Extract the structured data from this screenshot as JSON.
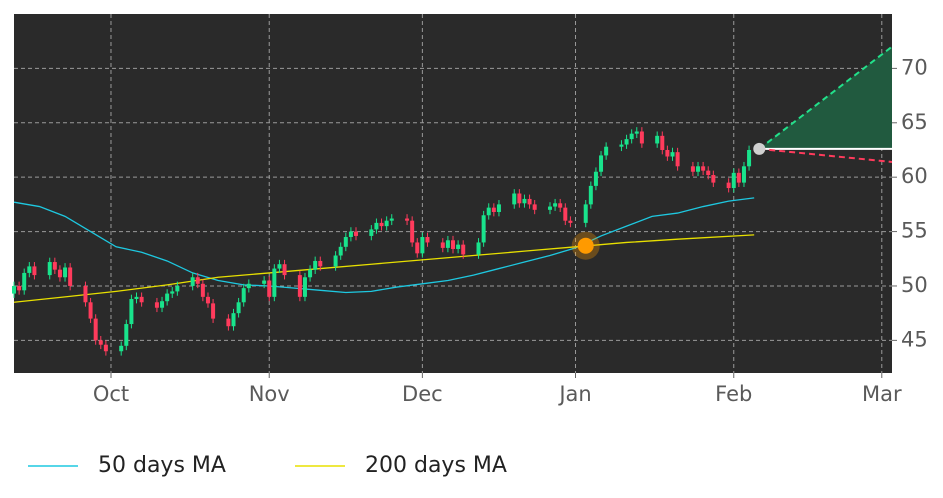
{
  "chart_data": {
    "type": "candlestick",
    "xlim": [
      0,
      172
    ],
    "ylim": [
      42,
      75
    ],
    "xticks": [
      {
        "value": 19,
        "label": "Oct"
      },
      {
        "value": 50,
        "label": "Nov"
      },
      {
        "value": 80,
        "label": "Dec"
      },
      {
        "value": 110,
        "label": "Jan"
      },
      {
        "value": 141,
        "label": "Feb"
      },
      {
        "value": 170,
        "label": "Mar"
      }
    ],
    "yticks": [
      45,
      50,
      55,
      60,
      65,
      70
    ],
    "grid": true,
    "background": "#2a2a2a",
    "up_color": "#19e38c",
    "down_color": "#ff3b5c",
    "x": [
      0,
      1,
      2,
      3,
      4,
      7,
      8,
      9,
      10,
      11,
      14,
      15,
      16,
      17,
      18,
      21,
      22,
      23,
      24,
      25,
      28,
      29,
      30,
      31,
      32,
      35,
      36,
      37,
      38,
      39,
      42,
      43,
      44,
      45,
      46,
      49,
      50,
      51,
      52,
      53,
      56,
      57,
      58,
      59,
      60,
      63,
      64,
      65,
      66,
      67,
      70,
      71,
      72,
      73,
      74,
      77,
      78,
      79,
      80,
      81,
      84,
      85,
      86,
      87,
      88,
      91,
      92,
      93,
      94,
      95,
      98,
      99,
      100,
      101,
      102,
      105,
      106,
      107,
      108,
      109,
      112,
      113,
      114,
      115,
      116,
      119,
      120,
      121,
      122,
      123,
      126,
      127,
      128,
      129,
      130,
      133,
      134,
      135,
      136,
      137,
      140,
      141,
      142,
      143,
      144
    ],
    "open": [
      49.3,
      50.0,
      49.6,
      51.2,
      51.8,
      51.0,
      52.2,
      51.5,
      50.8,
      51.7,
      50.0,
      48.5,
      47.0,
      45.0,
      44.6,
      44.0,
      44.5,
      46.5,
      48.8,
      49.0,
      48.5,
      48.0,
      48.6,
      49.3,
      49.5,
      50.0,
      50.8,
      50.2,
      49.0,
      48.4,
      47.0,
      46.3,
      47.5,
      48.5,
      49.8,
      50.2,
      50.5,
      49.0,
      51.6,
      52.0,
      51.0,
      49.0,
      50.8,
      51.5,
      52.3,
      51.8,
      52.8,
      53.6,
      54.5,
      55.0,
      54.6,
      55.2,
      55.8,
      55.5,
      56.0,
      56.2,
      56.0,
      54.0,
      53.0,
      54.5,
      54.0,
      53.5,
      54.2,
      53.4,
      53.8,
      52.9,
      54.0,
      56.5,
      57.2,
      56.8,
      57.5,
      58.5,
      57.6,
      58.0,
      57.5,
      57.0,
      57.3,
      57.6,
      57.2,
      56.0,
      55.8,
      57.5,
      59.2,
      60.5,
      62.0,
      62.8,
      63.0,
      63.5,
      64.0,
      64.2,
      63.1,
      63.8,
      62.5,
      61.9,
      62.3,
      61.0,
      60.5,
      61.0,
      60.6,
      60.2,
      59.5,
      59.0,
      60.4,
      59.5,
      61.0
    ],
    "high": [
      50.4,
      50.4,
      51.6,
      52.2,
      52.2,
      52.6,
      52.6,
      51.9,
      52.1,
      52.1,
      50.4,
      48.9,
      47.4,
      45.4,
      45.0,
      44.9,
      46.9,
      49.2,
      49.4,
      49.4,
      48.9,
      49.0,
      49.7,
      49.9,
      50.4,
      51.2,
      51.2,
      50.6,
      49.4,
      48.8,
      47.4,
      47.9,
      48.9,
      50.2,
      50.6,
      50.9,
      50.9,
      52.0,
      52.4,
      52.4,
      51.4,
      51.2,
      51.9,
      52.7,
      52.7,
      53.2,
      54.0,
      54.9,
      55.4,
      55.4,
      55.6,
      56.2,
      56.2,
      56.4,
      56.6,
      56.6,
      56.4,
      54.4,
      54.9,
      54.9,
      54.4,
      54.6,
      54.6,
      54.2,
      54.2,
      54.4,
      56.9,
      57.6,
      57.6,
      57.9,
      58.9,
      58.9,
      58.4,
      58.4,
      57.9,
      57.7,
      58.0,
      58.0,
      57.6,
      56.4,
      57.9,
      59.6,
      60.9,
      62.4,
      63.2,
      63.4,
      63.9,
      64.4,
      64.6,
      64.6,
      64.2,
      64.2,
      62.9,
      62.7,
      62.7,
      61.4,
      61.4,
      61.4,
      61.0,
      60.6,
      59.9,
      60.8,
      60.8,
      61.4,
      62.9
    ],
    "low": [
      48.9,
      49.2,
      49.2,
      50.8,
      50.6,
      50.6,
      51.1,
      50.4,
      50.4,
      49.6,
      48.1,
      46.6,
      44.6,
      44.2,
      43.6,
      43.6,
      44.1,
      46.1,
      48.4,
      48.1,
      47.6,
      47.6,
      48.2,
      48.9,
      49.1,
      49.6,
      49.8,
      48.6,
      48.0,
      46.6,
      45.9,
      45.9,
      47.1,
      48.1,
      49.4,
      49.8,
      48.6,
      48.6,
      51.2,
      50.6,
      48.6,
      48.6,
      50.4,
      51.1,
      51.4,
      51.4,
      52.4,
      53.2,
      54.1,
      54.2,
      54.2,
      54.8,
      55.1,
      55.1,
      55.6,
      55.6,
      53.6,
      52.6,
      52.6,
      53.6,
      53.1,
      53.1,
      53.0,
      53.0,
      52.5,
      52.5,
      53.6,
      56.1,
      56.4,
      56.4,
      57.1,
      57.2,
      57.2,
      57.1,
      56.6,
      56.6,
      56.9,
      56.8,
      55.6,
      55.4,
      55.4,
      57.1,
      58.8,
      60.1,
      61.6,
      62.4,
      62.6,
      63.1,
      63.6,
      62.7,
      62.7,
      62.1,
      61.5,
      61.5,
      60.6,
      60.1,
      60.1,
      60.2,
      59.8,
      59.1,
      58.6,
      58.6,
      59.1,
      59.1,
      60.6
    ],
    "close": [
      50.0,
      49.6,
      51.2,
      51.8,
      51.0,
      52.2,
      51.5,
      50.8,
      51.7,
      50.0,
      48.5,
      47.0,
      45.0,
      44.6,
      44.0,
      44.5,
      46.5,
      48.8,
      49.0,
      48.5,
      48.0,
      48.6,
      49.3,
      49.5,
      50.0,
      50.8,
      50.2,
      49.0,
      48.4,
      47.0,
      46.3,
      47.5,
      48.5,
      49.8,
      50.2,
      50.5,
      49.0,
      51.6,
      52.0,
      51.0,
      49.0,
      50.8,
      51.5,
      52.3,
      51.8,
      52.8,
      53.6,
      54.5,
      55.0,
      54.6,
      55.2,
      55.8,
      55.5,
      56.0,
      56.2,
      56.0,
      54.0,
      53.0,
      54.5,
      54.0,
      53.5,
      54.2,
      53.4,
      53.8,
      52.9,
      54.0,
      56.5,
      57.2,
      56.8,
      57.5,
      58.5,
      57.6,
      58.0,
      57.5,
      57.0,
      57.3,
      57.6,
      57.2,
      56.0,
      55.8,
      57.5,
      59.2,
      60.5,
      62.0,
      62.8,
      63.0,
      63.5,
      64.0,
      64.2,
      63.1,
      63.8,
      62.5,
      61.9,
      62.3,
      61.0,
      60.5,
      61.0,
      60.6,
      60.2,
      59.5,
      59.0,
      60.4,
      59.5,
      61.0,
      62.5
    ],
    "series": [
      {
        "name": "50 days MA",
        "color": "#1ec8e0",
        "x": [
          0,
          5,
          10,
          15,
          20,
          25,
          30,
          35,
          40,
          45,
          50,
          55,
          60,
          65,
          70,
          75,
          80,
          85,
          90,
          95,
          100,
          105,
          110,
          115,
          120,
          125,
          130,
          135,
          140,
          145
        ],
        "values": [
          57.7,
          57.3,
          56.4,
          55.0,
          53.6,
          53.1,
          52.3,
          51.2,
          50.5,
          50.1,
          50.0,
          49.8,
          49.6,
          49.4,
          49.5,
          49.9,
          50.2,
          50.5,
          51.0,
          51.6,
          52.2,
          52.8,
          53.5,
          54.6,
          55.5,
          56.4,
          56.7,
          57.3,
          57.8,
          58.1
        ]
      },
      {
        "name": "200 days MA",
        "color": "#e8e000",
        "x": [
          0,
          10,
          20,
          30,
          40,
          50,
          60,
          70,
          80,
          90,
          100,
          110,
          120,
          130,
          145
        ],
        "values": [
          48.5,
          49.0,
          49.5,
          50.1,
          50.8,
          51.2,
          51.6,
          52.0,
          52.4,
          52.8,
          53.2,
          53.6,
          54.0,
          54.3,
          54.7
        ]
      }
    ],
    "highlight": {
      "x": 112,
      "y": 53.7,
      "color": "#ff9a00"
    },
    "forecast": {
      "x": [
        146,
        172
      ],
      "start": 62.6,
      "upper": 72,
      "lower": 61.4,
      "start_color": "#d0d0d0",
      "upper_color": "#22e08a",
      "lower_color": "#ff3b5c",
      "fill": "#215a3f"
    }
  }
}
